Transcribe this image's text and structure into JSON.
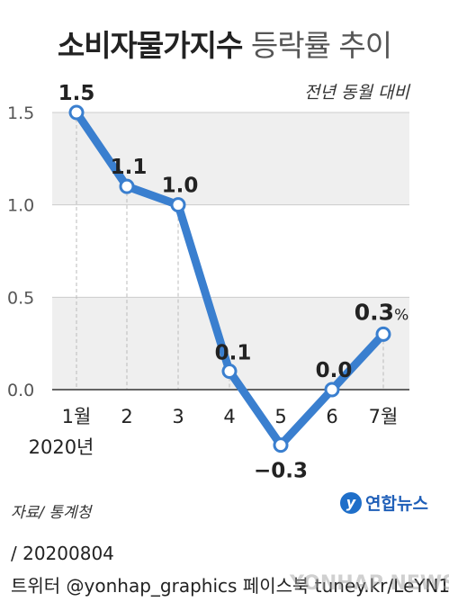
{
  "title_bold": "소비자물가지수",
  "title_light": "등락률 추이",
  "unit_label": "전년 동월 대비",
  "source": "자료/ 통계청",
  "logo_text": "연합뉴스",
  "logo_mark": "y",
  "footer_date": "/ 20200804",
  "footer_social": "트위터 @yonhap_graphics  페이스북 tuney.kr/LeYN1",
  "watermark": "YONHAP NEWS",
  "colors": {
    "line": "#3a7fcf",
    "band": "#efefef",
    "grid": "#cccccc",
    "axis": "#333333"
  },
  "chart_data": {
    "type": "line",
    "categories": [
      "1월",
      "2",
      "3",
      "4",
      "5",
      "6",
      "7월"
    ],
    "year_label": "2020년",
    "values": [
      1.5,
      1.1,
      1.0,
      0.1,
      -0.3,
      0.0,
      0.3
    ],
    "data_labels": [
      "1.5",
      "1.1",
      "1.0",
      "0.1",
      "−0.3",
      "0.0",
      "0.3"
    ],
    "last_label_suffix": "%",
    "yticks": [
      "0.0",
      "0.5",
      "1.0",
      "1.5"
    ],
    "ytick_values": [
      0,
      0.5,
      1.0,
      1.5
    ],
    "ylim": [
      -0.3,
      1.5
    ],
    "grid": true
  }
}
